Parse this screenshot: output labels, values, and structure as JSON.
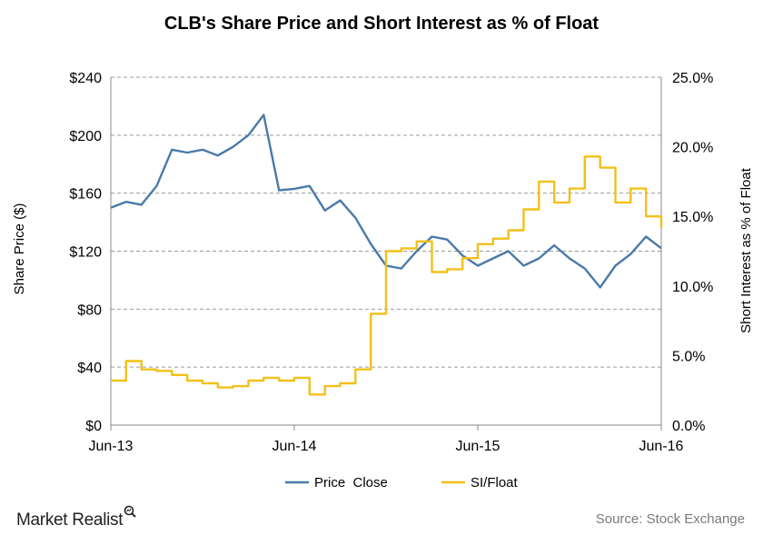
{
  "chart_data": {
    "type": "line",
    "title": "CLB's Share Price and Short Interest as %  of Float",
    "y_left_label": "Share Price ($)",
    "y_right_label": "Short Interest as % of Float",
    "x_ticks": [
      "Jun-13",
      "Jun-14",
      "Jun-15",
      "Jun-16"
    ],
    "x_range": [
      "2013-06",
      "2016-06"
    ],
    "y_left_range": [
      0,
      240
    ],
    "y_left_ticks": [
      {
        "value": 0,
        "label": "$0"
      },
      {
        "value": 40,
        "label": "$40"
      },
      {
        "value": 80,
        "label": "$80"
      },
      {
        "value": 120,
        "label": "$120"
      },
      {
        "value": 160,
        "label": "$160"
      },
      {
        "value": 200,
        "label": "$200"
      },
      {
        "value": 240,
        "label": "$240"
      }
    ],
    "y_right_range": [
      0,
      25
    ],
    "y_right_ticks": [
      {
        "value": 0,
        "label": "0.0%"
      },
      {
        "value": 5,
        "label": "5.0%"
      },
      {
        "value": 10,
        "label": "10.0%"
      },
      {
        "value": 15,
        "label": "15.0%"
      },
      {
        "value": 20,
        "label": "20.0%"
      },
      {
        "value": 25,
        "label": "25.0%"
      }
    ],
    "gridlines": true,
    "legend_position": "bottom",
    "series": [
      {
        "name": "Price  Close",
        "axis": "left",
        "color": "#4a7aa8",
        "x": [
          "2013-06",
          "2013-07",
          "2013-08",
          "2013-09",
          "2013-10",
          "2013-11",
          "2013-12",
          "2014-01",
          "2014-02",
          "2014-03",
          "2014-04",
          "2014-05",
          "2014-06",
          "2014-07",
          "2014-08",
          "2014-09",
          "2014-10",
          "2014-11",
          "2014-12",
          "2015-01",
          "2015-02",
          "2015-03",
          "2015-04",
          "2015-05",
          "2015-06",
          "2015-07",
          "2015-08",
          "2015-09",
          "2015-10",
          "2015-11",
          "2015-12",
          "2016-01",
          "2016-02",
          "2016-03",
          "2016-04",
          "2016-05",
          "2016-06"
        ],
        "values": [
          150,
          154,
          152,
          165,
          190,
          188,
          190,
          186,
          192,
          200,
          214,
          162,
          163,
          165,
          148,
          155,
          143,
          125,
          110,
          108,
          120,
          130,
          128,
          117,
          110,
          115,
          120,
          110,
          115,
          124,
          115,
          108,
          95,
          110,
          118,
          130,
          122
        ]
      },
      {
        "name": "SI/Float",
        "axis": "right",
        "color": "#f2c019",
        "x": [
          "2013-06",
          "2013-07",
          "2013-08",
          "2013-09",
          "2013-10",
          "2013-11",
          "2013-12",
          "2014-01",
          "2014-02",
          "2014-03",
          "2014-04",
          "2014-05",
          "2014-06",
          "2014-07",
          "2014-08",
          "2014-09",
          "2014-10",
          "2014-11",
          "2014-12",
          "2015-01",
          "2015-02",
          "2015-03",
          "2015-04",
          "2015-05",
          "2015-06",
          "2015-07",
          "2015-08",
          "2015-09",
          "2015-10",
          "2015-11",
          "2015-12",
          "2016-01",
          "2016-02",
          "2016-03",
          "2016-04",
          "2016-05",
          "2016-06"
        ],
        "values": [
          3.2,
          4.6,
          4.0,
          3.9,
          3.6,
          3.2,
          3.0,
          2.7,
          2.8,
          3.2,
          3.4,
          3.2,
          3.4,
          2.2,
          2.8,
          3.0,
          4.0,
          8.0,
          12.5,
          12.7,
          13.2,
          11.0,
          11.2,
          12.0,
          13.0,
          13.4,
          14.0,
          15.5,
          17.5,
          16.0,
          17.0,
          19.3,
          18.5,
          16.0,
          17.0,
          15.0,
          14.2
        ]
      }
    ]
  },
  "brand": "Market Realist",
  "source": "Source:  Stock Exchange"
}
